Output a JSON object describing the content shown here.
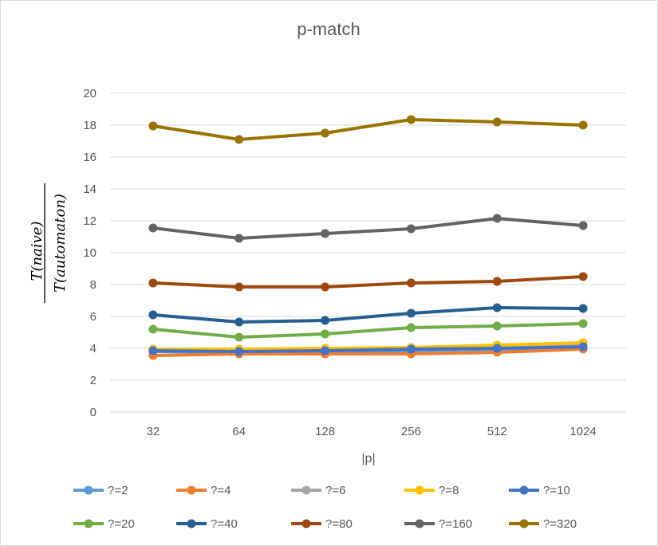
{
  "chart_data": {
    "type": "line",
    "title": "p-match",
    "xlabel": "|p|",
    "ylabel_numerator": "T(naive)",
    "ylabel_denominator": "T(automaton)",
    "categories": [
      "32",
      "64",
      "128",
      "256",
      "512",
      "1024"
    ],
    "ylim": [
      0,
      20
    ],
    "yticks": [
      0,
      2,
      4,
      6,
      8,
      10,
      12,
      14,
      16,
      18,
      20
    ],
    "grid": true,
    "legend_position": "bottom",
    "series": [
      {
        "name": "?=2",
        "color": "#5B9BD5",
        "values": [
          3.8,
          3.75,
          3.75,
          3.85,
          3.95,
          4.05
        ]
      },
      {
        "name": "?=4",
        "color": "#ED7D31",
        "values": [
          3.55,
          3.65,
          3.65,
          3.65,
          3.75,
          3.95
        ]
      },
      {
        "name": "?=6",
        "color": "#A5A5A5",
        "values": [
          3.9,
          3.9,
          3.95,
          4.0,
          4.2,
          4.3
        ]
      },
      {
        "name": "?=8",
        "color": "#FFC000",
        "values": [
          3.95,
          3.95,
          4.0,
          4.05,
          4.2,
          4.35
        ]
      },
      {
        "name": "?=10",
        "color": "#4472C4",
        "values": [
          3.85,
          3.8,
          3.85,
          3.95,
          4.0,
          4.1
        ]
      },
      {
        "name": "?=20",
        "color": "#70AD47",
        "values": [
          5.2,
          4.7,
          4.9,
          5.3,
          5.4,
          5.55
        ]
      },
      {
        "name": "?=40",
        "color": "#255E91",
        "values": [
          6.1,
          5.65,
          5.75,
          6.2,
          6.55,
          6.5
        ]
      },
      {
        "name": "?=80",
        "color": "#9E480E",
        "values": [
          8.1,
          7.85,
          7.85,
          8.1,
          8.2,
          8.5
        ]
      },
      {
        "name": "?=160",
        "color": "#636363",
        "values": [
          11.55,
          10.9,
          11.2,
          11.5,
          12.15,
          11.7
        ]
      },
      {
        "name": "?=320",
        "color": "#997300",
        "values": [
          17.95,
          17.1,
          17.5,
          18.35,
          18.2,
          18.0
        ]
      }
    ]
  }
}
